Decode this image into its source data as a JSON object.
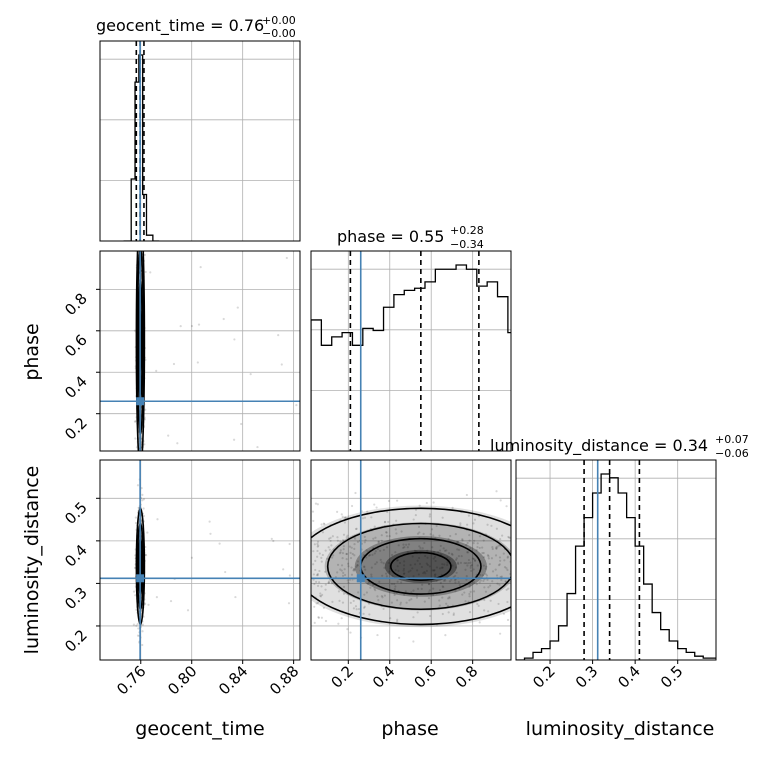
{
  "colors": {
    "truth": "#4682b4",
    "hist": "#000000",
    "density_dark": "#000000",
    "grid": "#b0b0b0"
  },
  "chart_data": {
    "type": "corner",
    "parameters": [
      "geocent_time",
      "phase",
      "luminosity_distance"
    ],
    "axis_labels": {
      "x": [
        "geocent_time",
        "phase",
        "luminosity_distance"
      ],
      "y": [
        "phase",
        "luminosity_distance"
      ]
    },
    "ranges": {
      "geocent_time": [
        0.728,
        0.885
      ],
      "phase": [
        0.02,
        0.985
      ],
      "luminosity_distance": [
        0.12,
        0.59
      ]
    },
    "ticks": {
      "geocent_time": [
        "0.76",
        "0.80",
        "0.84",
        "0.88"
      ],
      "phase": [
        "0.2",
        "0.4",
        "0.6",
        "0.8"
      ],
      "luminosity_distance": [
        "0.2",
        "0.3",
        "0.4",
        "0.5"
      ]
    },
    "truths": {
      "geocent_time": 0.7595,
      "phase": 0.26,
      "luminosity_distance": 0.312
    },
    "grid": true,
    "marginals": [
      {
        "parameter": "geocent_time",
        "title": "geocent_time = 0.76",
        "sup": "+0.00",
        "sub": "−0.00",
        "median": 0.7595,
        "q_low": 0.7565,
        "q_high": 0.7625,
        "bins": [
          0.7465,
          0.7525,
          0.7555,
          0.7585,
          0.7615,
          0.7645,
          0.7695,
          0.7745
        ],
        "counts": [
          0.0,
          0.32,
          0.82,
          0.96,
          0.24,
          0.03,
          0.0
        ]
      },
      {
        "parameter": "phase",
        "title": "phase = 0.55",
        "sup": "+0.28",
        "sub": "−0.34",
        "median": 0.55,
        "q_low": 0.21,
        "q_high": 0.83,
        "bins": [
          0.02,
          0.07,
          0.12,
          0.17,
          0.22,
          0.27,
          0.32,
          0.37,
          0.42,
          0.47,
          0.52,
          0.57,
          0.62,
          0.67,
          0.72,
          0.77,
          0.82,
          0.87,
          0.92,
          0.97,
          1.02
        ],
        "counts": [
          0.62,
          0.5,
          0.54,
          0.56,
          0.5,
          0.58,
          0.57,
          0.68,
          0.74,
          0.76,
          0.77,
          0.8,
          0.86,
          0.86,
          0.88,
          0.86,
          0.78,
          0.8,
          0.73,
          0.56
        ]
      },
      {
        "parameter": "luminosity_distance",
        "title": "luminosity_distance = 0.34",
        "sup": "+0.07",
        "sub": "−0.06",
        "median": 0.34,
        "q_low": 0.28,
        "q_high": 0.41,
        "bins": [
          0.12,
          0.14,
          0.16,
          0.18,
          0.2,
          0.22,
          0.24,
          0.26,
          0.28,
          0.3,
          0.32,
          0.34,
          0.36,
          0.38,
          0.4,
          0.42,
          0.44,
          0.46,
          0.48,
          0.5,
          0.52,
          0.54,
          0.56,
          0.58,
          0.6
        ],
        "counts": [
          0.0,
          0.01,
          0.04,
          0.06,
          0.1,
          0.18,
          0.35,
          0.6,
          0.75,
          0.88,
          0.98,
          0.96,
          0.88,
          0.75,
          0.6,
          0.4,
          0.25,
          0.16,
          0.1,
          0.06,
          0.04,
          0.02,
          0.01,
          0.01
        ]
      }
    ],
    "joints": [
      {
        "x": "geocent_time",
        "y": "phase",
        "x_center": 0.7597,
        "y_center": 0.55,
        "x_sigma": 0.0015,
        "y_sigma": 0.29,
        "shape": "vertical-band"
      },
      {
        "x": "geocent_time",
        "y": "luminosity_distance",
        "x_center": 0.7597,
        "y_center": 0.34,
        "x_sigma": 0.0015,
        "y_sigma": 0.065,
        "shape": "ellipse"
      },
      {
        "x": "phase",
        "y": "luminosity_distance",
        "x_center": 0.55,
        "y_center": 0.34,
        "x_sigma": 0.29,
        "y_sigma": 0.065,
        "shape": "horizontal-band"
      }
    ]
  }
}
